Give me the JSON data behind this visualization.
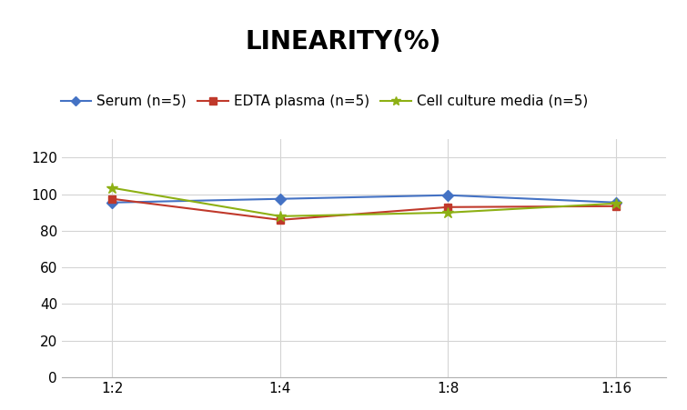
{
  "title": "LINEARITY(%)",
  "title_fontsize": 20,
  "title_fontweight": "bold",
  "x_labels": [
    "1:2",
    "1:4",
    "1:8",
    "1:16"
  ],
  "x_positions": [
    0,
    1,
    2,
    3
  ],
  "series": [
    {
      "label": "Serum (n=5)",
      "values": [
        95.5,
        97.5,
        99.5,
        95.5
      ],
      "color": "#4472C4",
      "marker": "D",
      "markersize": 6,
      "linewidth": 1.5
    },
    {
      "label": "EDTA plasma (n=5)",
      "values": [
        97.5,
        86.0,
        93.0,
        93.5
      ],
      "color": "#C0392B",
      "marker": "s",
      "markersize": 6,
      "linewidth": 1.5
    },
    {
      "label": "Cell culture media (n=5)",
      "values": [
        103.5,
        88.0,
        90.0,
        95.0
      ],
      "color": "#8DB014",
      "marker": "*",
      "markersize": 9,
      "linewidth": 1.5
    }
  ],
  "ylim": [
    0,
    130
  ],
  "yticks": [
    0,
    20,
    40,
    60,
    80,
    100,
    120
  ],
  "background_color": "#ffffff",
  "grid_color": "#d4d4d4",
  "legend_fontsize": 11,
  "tick_fontsize": 11
}
